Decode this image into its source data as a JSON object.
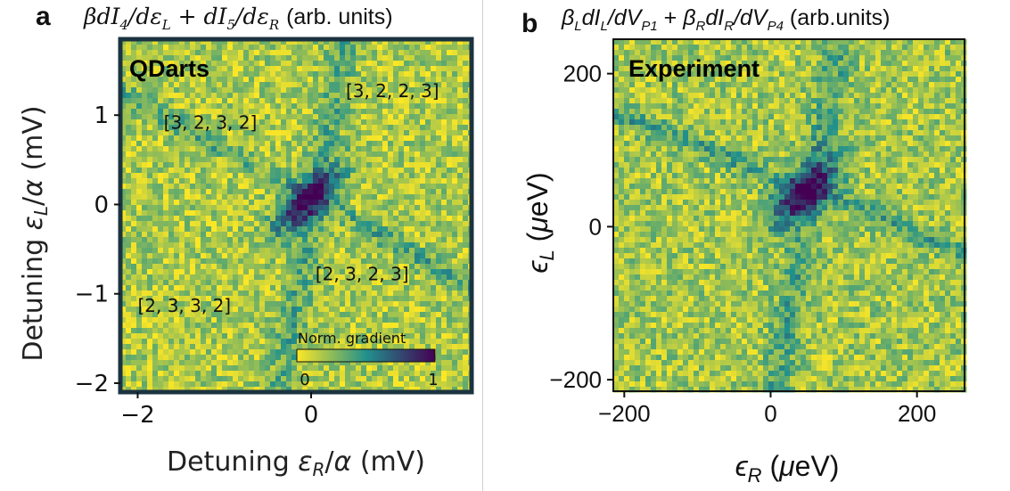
{
  "chart_data": [
    {
      "type": "heatmap",
      "panel": "a",
      "title": "βdI4/dεL + dI5/dεR (arb. units)",
      "xlabel": "Detuning εR/α (mV)",
      "ylabel": "Detuning εL/α (mV)",
      "xlim": [
        -2.2,
        1.85
      ],
      "ylim": [
        -2.1,
        1.85
      ],
      "x_ticks": [
        "−2",
        "0"
      ],
      "x_tick_values": [
        -2,
        0
      ],
      "y_ticks": [
        "1",
        "0",
        "−1",
        "−2"
      ],
      "y_tick_values": [
        1,
        0,
        -1,
        -2
      ],
      "inset_label": "QDarts",
      "colorbar": {
        "label": "Norm. gradient",
        "min_label": "0",
        "max_label": "1",
        "min": 0,
        "max": 1,
        "colors": [
          "#fde725",
          "#21918c",
          "#440154"
        ]
      },
      "annotations": [
        {
          "text": "[3, 2, 2, 3]",
          "x": 0.4,
          "y": 1.2
        },
        {
          "text": "[3, 2, 3, 2]",
          "x": -1.7,
          "y": 0.85
        },
        {
          "text": "[2, 3, 2, 3]",
          "x": 0.05,
          "y": -0.85
        },
        {
          "text": "[2, 3, 3, 2]",
          "x": -2.0,
          "y": -1.2
        }
      ],
      "features": {
        "center": [
          -0.05,
          0.05
        ],
        "diagonal_slope": 1,
        "transition_line_slope": -0.55
      }
    },
    {
      "type": "heatmap",
      "panel": "b",
      "title": "βLdIL/dVP1 + βRdIR/dVP4 (arb.units)",
      "xlabel": "ϵR (μeV)",
      "ylabel": "ϵL (μeV)",
      "xlim": [
        -215,
        265
      ],
      "ylim": [
        -215,
        245
      ],
      "x_ticks": [
        "−200",
        "0",
        "200"
      ],
      "x_tick_values": [
        -200,
        0,
        200
      ],
      "y_ticks": [
        "200",
        "0",
        "−200"
      ],
      "y_tick_values": [
        200,
        0,
        -200
      ],
      "inset_label": "Experiment",
      "features": {
        "center": [
          45,
          45
        ],
        "diagonal_slope": 1,
        "transition_line_slope": -0.4
      }
    }
  ],
  "labels": {
    "panel_a": "a",
    "panel_b": "b",
    "title_a_math": "βdI₄/dε_L + dI₅/dε_R",
    "title_a_unit": "(arb. units)",
    "title_b_unit": "(arb.units)"
  }
}
